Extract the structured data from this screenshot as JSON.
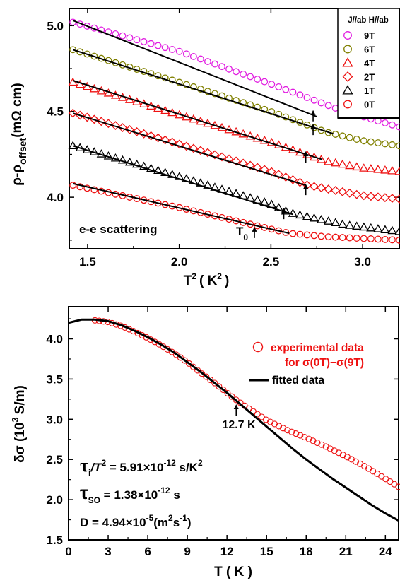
{
  "chart_data": [
    {
      "type": "scatter",
      "xlabel_main": "T",
      "xlabel_sup": "2",
      "xlabel_rest": "( K",
      "xlabel_rest_sup": "2",
      "xlabel_close": ")",
      "ylabel_main": "ρ-ρ",
      "ylabel_sub": "offset",
      "ylabel_unit": "(mΩ cm)",
      "xlim": [
        1.4,
        3.2
      ],
      "ylim": [
        3.7,
        5.1
      ],
      "xticks": [
        1.5,
        2.0,
        2.5,
        3.0
      ],
      "xtick_labels": [
        "1.5",
        "2.0",
        "2.5",
        "3.0"
      ],
      "yticks": [
        4.0,
        4.5,
        5.0
      ],
      "ytick_labels": [
        "4.0",
        "4.5",
        "5.0"
      ],
      "legend_header": "J//ab H//ab",
      "annotation": "e-e scattering",
      "t0_label": "T",
      "t0_sub": "0",
      "series": [
        {
          "name": "9T",
          "marker": "circle",
          "color": "#e11ee1",
          "x_start": 1.42,
          "x_end": 3.2,
          "count": 47,
          "y_points": [
            [
              1.42,
              5.02
            ],
            [
              2.0,
              4.85
            ],
            [
              2.5,
              4.66
            ],
            [
              2.9,
              4.5
            ],
            [
              3.2,
              4.41
            ]
          ],
          "fit": [
            [
              1.42,
              5.03
            ],
            [
              2.75,
              4.47
            ]
          ],
          "arrow": [
            2.73,
            4.5
          ]
        },
        {
          "name": "6T",
          "marker": "circle",
          "color": "#808000",
          "x_start": 1.42,
          "x_end": 3.2,
          "count": 47,
          "y_points": [
            [
              1.42,
              4.86
            ],
            [
              2.0,
              4.67
            ],
            [
              2.5,
              4.5
            ],
            [
              2.8,
              4.38
            ],
            [
              3.0,
              4.33
            ],
            [
              3.2,
              4.3
            ]
          ],
          "fit": [
            [
              1.42,
              4.86
            ],
            [
              2.84,
              4.37
            ]
          ],
          "arrow": [
            2.73,
            4.42
          ]
        },
        {
          "name": "4T",
          "marker": "triangle",
          "color": "#ee1111",
          "x_start": 1.42,
          "x_end": 3.2,
          "count": 47,
          "y_points": [
            [
              1.42,
              4.67
            ],
            [
              2.0,
              4.48
            ],
            [
              2.5,
              4.32
            ],
            [
              2.8,
              4.21
            ],
            [
              3.0,
              4.17
            ],
            [
              3.2,
              4.15
            ]
          ],
          "fit": [
            [
              1.42,
              4.68
            ],
            [
              2.78,
              4.22
            ]
          ],
          "arrow": [
            2.69,
            4.26
          ]
        },
        {
          "name": "2T",
          "marker": "diamond",
          "color": "#ee1111",
          "x_start": 1.42,
          "x_end": 3.2,
          "count": 47,
          "y_points": [
            [
              1.42,
              4.49
            ],
            [
              2.0,
              4.31
            ],
            [
              2.5,
              4.15
            ],
            [
              2.7,
              4.07
            ],
            [
              3.0,
              4.01
            ],
            [
              3.2,
              3.99
            ]
          ],
          "fit": [
            [
              1.42,
              4.49
            ],
            [
              2.69,
              4.07
            ]
          ],
          "arrow": [
            2.69,
            4.07
          ]
        },
        {
          "name": "1T",
          "marker": "triangle",
          "color": "#000000",
          "x_start": 1.42,
          "x_end": 3.2,
          "count": 47,
          "y_points": [
            [
              1.42,
              4.3
            ],
            [
              2.0,
              4.12
            ],
            [
              2.5,
              3.96
            ],
            [
              2.6,
              3.91
            ],
            [
              2.9,
              3.84
            ],
            [
              3.2,
              3.8
            ]
          ],
          "fit": [
            [
              1.42,
              4.3
            ],
            [
              2.62,
              3.9
            ]
          ],
          "arrow": [
            2.57,
            3.93
          ]
        },
        {
          "name": "0T",
          "marker": "circle",
          "color": "#ee1111",
          "x_start": 1.42,
          "x_end": 3.2,
          "count": 47,
          "y_points": [
            [
              1.42,
              4.07
            ],
            [
              2.0,
              3.94
            ],
            [
              2.4,
              3.84
            ],
            [
              2.6,
              3.79
            ],
            [
              2.8,
              3.77
            ],
            [
              3.2,
              3.75
            ]
          ],
          "fit": [
            [
              1.42,
              4.08
            ],
            [
              2.6,
              3.79
            ]
          ],
          "arrow": [
            2.41,
            3.82
          ]
        }
      ]
    },
    {
      "type": "scatter",
      "xlabel": "T ( K )",
      "ylabel_main": "δσ (10",
      "ylabel_sup": "3",
      "ylabel_rest": "S/m)",
      "xlim": [
        0,
        25
      ],
      "ylim": [
        1.5,
        4.4
      ],
      "xticks": [
        0,
        3,
        6,
        9,
        12,
        15,
        18,
        21,
        24
      ],
      "xtick_labels": [
        "0",
        "3",
        "6",
        "9",
        "12",
        "15",
        "18",
        "21",
        "24"
      ],
      "yticks": [
        1.5,
        2.0,
        2.5,
        3.0,
        3.5,
        4.0
      ],
      "ytick_labels": [
        "1.5",
        "2.0",
        "2.5",
        "3.0",
        "3.5",
        "4.0"
      ],
      "legend": {
        "marker_label_1": "experimental data",
        "marker_label_2": "for σ(0T)−σ(9T)",
        "line_label": "fitted data"
      },
      "marker_color": "#ee1111",
      "exp_data": [
        [
          2.0,
          4.23
        ],
        [
          3.0,
          4.21
        ],
        [
          4.0,
          4.16
        ],
        [
          5.0,
          4.09
        ],
        [
          6.0,
          4.01
        ],
        [
          7.0,
          3.92
        ],
        [
          8.0,
          3.82
        ],
        [
          9.0,
          3.71
        ],
        [
          10.0,
          3.58
        ],
        [
          11.0,
          3.46
        ],
        [
          12.0,
          3.33
        ],
        [
          12.7,
          3.24
        ],
        [
          13.5,
          3.15
        ],
        [
          15.0,
          2.99
        ],
        [
          16.5,
          2.87
        ],
        [
          18.0,
          2.77
        ],
        [
          19.5,
          2.66
        ],
        [
          21.0,
          2.54
        ],
        [
          22.5,
          2.41
        ],
        [
          24.0,
          2.26
        ],
        [
          25.0,
          2.16
        ]
      ],
      "exp_count": 72,
      "fit_data": [
        [
          0.0,
          4.2
        ],
        [
          0.5,
          4.22
        ],
        [
          1.0,
          4.24
        ],
        [
          2.0,
          4.24
        ],
        [
          3.0,
          4.22
        ],
        [
          4.0,
          4.17
        ],
        [
          5.0,
          4.1
        ],
        [
          6.0,
          4.02
        ],
        [
          7.0,
          3.93
        ],
        [
          8.0,
          3.83
        ],
        [
          9.0,
          3.71
        ],
        [
          10.0,
          3.59
        ],
        [
          11.0,
          3.46
        ],
        [
          12.0,
          3.33
        ],
        [
          13.0,
          3.19
        ],
        [
          14.0,
          3.05
        ],
        [
          15.0,
          2.91
        ],
        [
          16.0,
          2.77
        ],
        [
          17.0,
          2.63
        ],
        [
          18.0,
          2.5
        ],
        [
          19.0,
          2.38
        ],
        [
          20.0,
          2.26
        ],
        [
          21.0,
          2.15
        ],
        [
          22.0,
          2.04
        ],
        [
          23.0,
          1.93
        ],
        [
          24.0,
          1.83
        ],
        [
          25.0,
          1.74
        ]
      ],
      "arrow_label": "12.7 K",
      "arrow_at": [
        12.7,
        3.24
      ],
      "tau_i_sym": "τ",
      "tau_i_sub": "i",
      "tau_i_rest": "/T",
      "tau_i_sup": "2",
      "tau_i_value": " = 5.91×10",
      "tau_i_exp": "-12",
      "tau_i_unit": " s/K",
      "tau_i_unit_sup": "2",
      "tau_so_sym": "τ",
      "tau_so_sub": "SO",
      "tau_so_value": " = 1.38×10",
      "tau_so_exp": "-12",
      "tau_so_unit": " s",
      "d_text": "D = 4.94×10",
      "d_exp": "-5",
      "d_unit": "(m",
      "d_unit_sup": "2",
      "d_unit_s": "s",
      "d_unit_s_sup": "-1",
      "d_close": ")"
    }
  ]
}
